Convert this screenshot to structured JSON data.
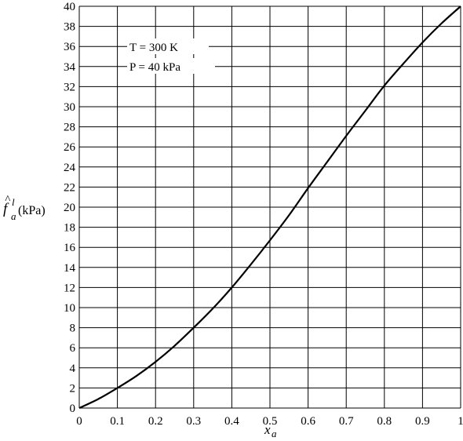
{
  "chart_data": {
    "type": "line",
    "xlabel_main": "x",
    "xlabel_sub": "a",
    "ylabel_main": "f",
    "ylabel_sub": "a",
    "ylabel_sup": "l",
    "ylabel_unit": "(kPa)",
    "xlim": [
      0,
      1
    ],
    "ylim": [
      0,
      40
    ],
    "x_ticks": [
      "0",
      "0.1",
      "0.2",
      "0.3",
      "0.4",
      "0.5",
      "0.6",
      "0.7",
      "0.8",
      "0.9",
      "1"
    ],
    "y_ticks": [
      "0",
      "2",
      "4",
      "6",
      "8",
      "10",
      "12",
      "14",
      "16",
      "18",
      "20",
      "22",
      "24",
      "26",
      "28",
      "30",
      "32",
      "34",
      "36",
      "38",
      "40"
    ],
    "grid": true,
    "annotations": [
      "T = 300 K",
      "P = 40 kPa"
    ],
    "series": [
      {
        "x": [
          0,
          0.05,
          0.1,
          0.15,
          0.2,
          0.25,
          0.3,
          0.35,
          0.4,
          0.45,
          0.5,
          0.55,
          0.6,
          0.65,
          0.7,
          0.75,
          0.8,
          0.85,
          0.9,
          0.95,
          1
        ],
        "y": [
          0,
          0.9,
          2.0,
          3.2,
          4.6,
          6.2,
          8.0,
          9.9,
          12.0,
          14.3,
          16.7,
          19.2,
          21.9,
          24.5,
          27.1,
          29.6,
          32.1,
          34.3,
          36.4,
          38.3,
          40
        ]
      }
    ]
  }
}
